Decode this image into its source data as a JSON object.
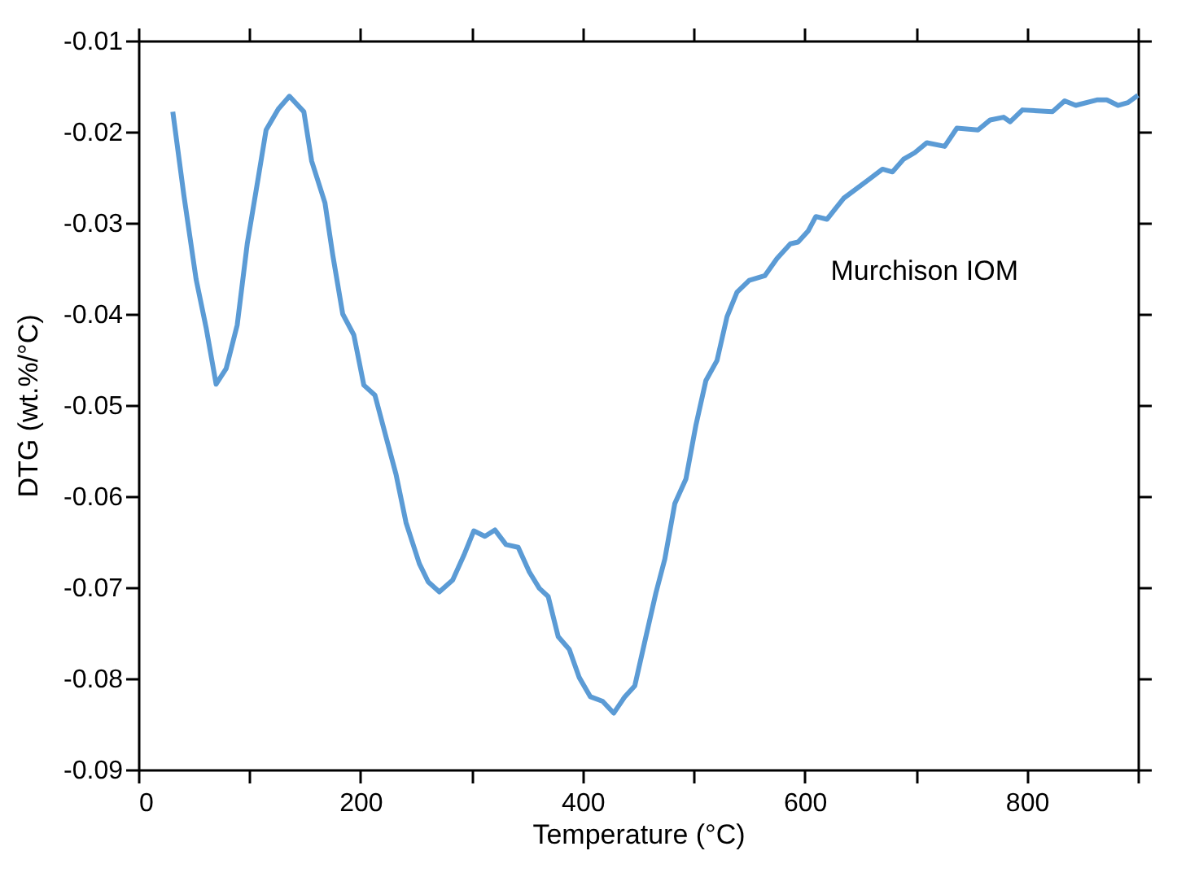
{
  "chart_data": {
    "type": "line",
    "xlabel": "Temperature (°C)",
    "ylabel": "DTG (wt.%/°C)",
    "xlim": [
      0,
      900
    ],
    "ylim": [
      -0.09,
      -0.01
    ],
    "xticks": [
      0,
      {
        "value": 100,
        "label": null
      },
      200,
      {
        "value": 300,
        "label": null
      },
      400,
      {
        "value": 500,
        "label": null
      },
      600,
      {
        "value": 700,
        "label": null
      },
      800,
      {
        "value": 900,
        "label": null
      }
    ],
    "yticks": [
      -0.09,
      -0.08,
      -0.07,
      -0.06,
      -0.05,
      -0.04,
      -0.03,
      -0.02,
      -0.01
    ],
    "grid": false,
    "legend": false,
    "marker": "none",
    "line_style": "solid",
    "series": [
      {
        "name": "Murchison IOM",
        "color": "#5b9bd5",
        "x": [
          31,
          41,
          52,
          61,
          70,
          79,
          89,
          98,
          108,
          115,
          126,
          136,
          149,
          156,
          168,
          175,
          184,
          194,
          203,
          213,
          223,
          232,
          241,
          253,
          261,
          271,
          283,
          293,
          302,
          312,
          321,
          331,
          342,
          352,
          361,
          369,
          378,
          388,
          397,
          407,
          418,
          428,
          438,
          447,
          457,
          466,
          474,
          483,
          493,
          502,
          511,
          521,
          530,
          539,
          550,
          564,
          575,
          587,
          594,
          603,
          610,
          620,
          635,
          657,
          670,
          679,
          689,
          699,
          710,
          726,
          737,
          756,
          767,
          779,
          785,
          796,
          823,
          834,
          844,
          863,
          872,
          882,
          891,
          900
        ],
        "values": [
          -0.0178,
          -0.027,
          -0.0362,
          -0.0415,
          -0.0477,
          -0.046,
          -0.0412,
          -0.0323,
          -0.025,
          -0.0198,
          -0.0175,
          -0.0161,
          -0.0178,
          -0.0232,
          -0.0278,
          -0.0335,
          -0.04,
          -0.0423,
          -0.0478,
          -0.0489,
          -0.0535,
          -0.0576,
          -0.0629,
          -0.0674,
          -0.0694,
          -0.0705,
          -0.0692,
          -0.0665,
          -0.0638,
          -0.0644,
          -0.0637,
          -0.0653,
          -0.0656,
          -0.0683,
          -0.0701,
          -0.071,
          -0.0754,
          -0.0768,
          -0.0799,
          -0.082,
          -0.0825,
          -0.0838,
          -0.082,
          -0.0808,
          -0.0754,
          -0.0706,
          -0.0669,
          -0.0608,
          -0.0581,
          -0.0522,
          -0.0473,
          -0.0451,
          -0.0403,
          -0.0376,
          -0.0363,
          -0.0358,
          -0.0339,
          -0.0323,
          -0.0321,
          -0.0309,
          -0.0293,
          -0.0296,
          -0.0273,
          -0.0253,
          -0.0241,
          -0.0244,
          -0.023,
          -0.0223,
          -0.0212,
          -0.0216,
          -0.0196,
          -0.0198,
          -0.0187,
          -0.0184,
          -0.0189,
          -0.0176,
          -0.0178,
          -0.0166,
          -0.0171,
          -0.0165,
          -0.0165,
          -0.0171,
          -0.0168,
          -0.016
        ]
      }
    ]
  }
}
